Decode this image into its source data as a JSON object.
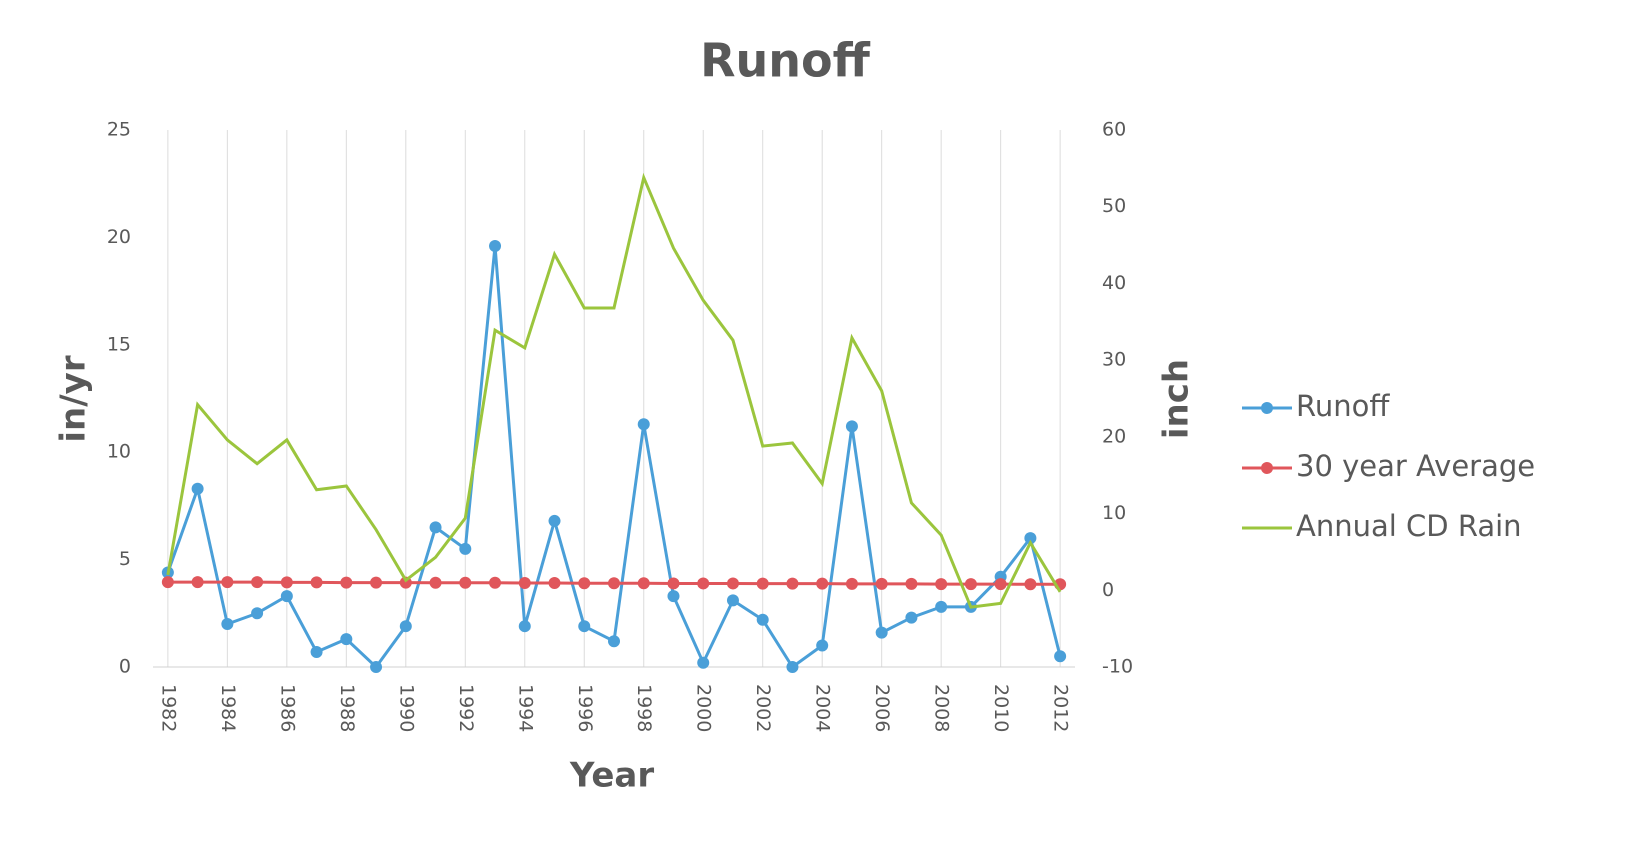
{
  "chart_data": {
    "type": "line",
    "title": "Runoff",
    "x_label": "Year",
    "y_label": "in/yr",
    "y2_label": "inch",
    "x": [
      1982,
      1983,
      1984,
      1985,
      1986,
      1987,
      1988,
      1989,
      1990,
      1991,
      1992,
      1993,
      1994,
      1995,
      1996,
      1997,
      1998,
      1999,
      2000,
      2001,
      2002,
      2003,
      2004,
      2005,
      2006,
      2007,
      2008,
      2009,
      2010,
      2011,
      2012
    ],
    "xlim": [
      1981.5,
      2012.5
    ],
    "xticks": [
      1982,
      1984,
      1986,
      1988,
      1990,
      1992,
      1994,
      1996,
      1998,
      2000,
      2002,
      2004,
      2006,
      2008,
      2010,
      2012
    ],
    "ylim": [
      0,
      25
    ],
    "yticks": [
      0,
      5,
      10,
      15,
      20,
      25
    ],
    "y2lim": [
      -10,
      60
    ],
    "y2ticks": [
      -10,
      0,
      10,
      20,
      30,
      40,
      50,
      60
    ],
    "grid": "x",
    "legend": "right",
    "series": [
      {
        "name": "Runoff",
        "color": "#4a9fd8",
        "markers": true,
        "values": [
          4.4,
          8.3,
          2.0,
          2.5,
          3.3,
          0.7,
          1.3,
          0.0,
          1.9,
          6.5,
          5.5,
          19.6,
          1.9,
          6.8,
          1.9,
          1.2,
          11.3,
          3.3,
          0.2,
          3.1,
          2.2,
          0.0,
          1.0,
          11.2,
          1.6,
          2.3,
          2.8,
          2.8,
          4.2,
          6.0,
          0.5
        ]
      },
      {
        "name": "30 year Average",
        "color": "#e0565b",
        "markers": true,
        "values": [
          3.95,
          3.95,
          3.95,
          3.95,
          3.94,
          3.94,
          3.93,
          3.93,
          3.93,
          3.92,
          3.92,
          3.92,
          3.91,
          3.91,
          3.9,
          3.9,
          3.9,
          3.89,
          3.89,
          3.89,
          3.88,
          3.88,
          3.88,
          3.87,
          3.87,
          3.87,
          3.86,
          3.86,
          3.86,
          3.85,
          3.85
        ]
      },
      {
        "name": "Annual CD Rain",
        "color": "#9bc53d",
        "markers": false,
        "axis": "y2",
        "values": [
          2.0,
          24.2,
          19.6,
          16.5,
          19.6,
          13.1,
          13.6,
          7.9,
          1.3,
          4.3,
          9.4,
          33.9,
          31.6,
          43.8,
          36.8,
          36.8,
          53.8,
          44.6,
          37.8,
          32.6,
          18.8,
          19.2,
          13.9,
          32.9,
          26.0,
          11.4,
          7.2,
          -2.2,
          -1.7,
          6.2,
          -0.2
        ]
      }
    ]
  }
}
